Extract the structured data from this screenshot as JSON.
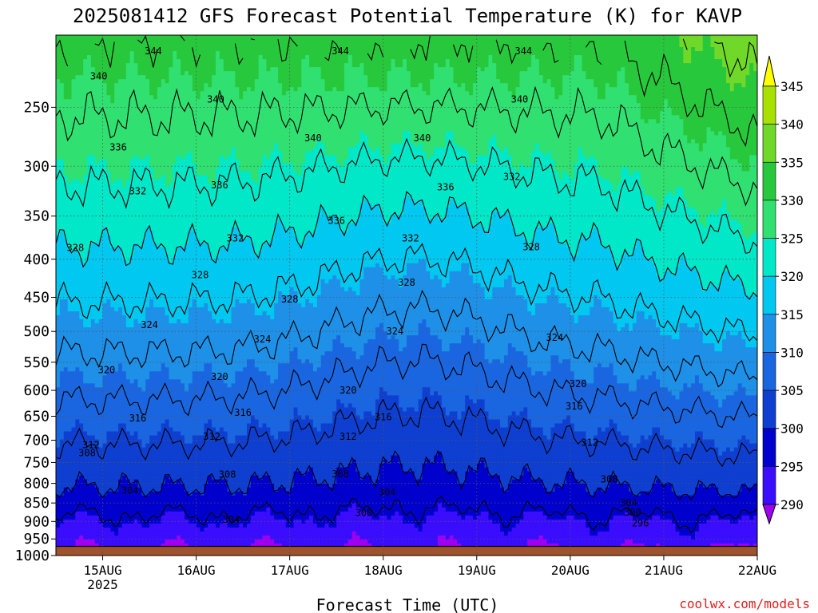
{
  "chart_data": {
    "type": "heatmap",
    "title": "2025081412 GFS Forecast Potential Temperature (K) for KAVP",
    "xlabel": "Forecast Time (UTC)",
    "ylabel": "",
    "watermark": "coolwx.com/models",
    "x_start_label": "2025081412",
    "x_ticks": [
      {
        "label": "15AUG",
        "sub": "2025",
        "hours": 12
      },
      {
        "label": "16AUG",
        "sub": "",
        "hours": 36
      },
      {
        "label": "17AUG",
        "sub": "",
        "hours": 60
      },
      {
        "label": "18AUG",
        "sub": "",
        "hours": 84
      },
      {
        "label": "19AUG",
        "sub": "",
        "hours": 108
      },
      {
        "label": "20AUG",
        "sub": "",
        "hours": 132
      },
      {
        "label": "21AUG",
        "sub": "",
        "hours": 156
      },
      {
        "label": "22AUG",
        "sub": "",
        "hours": 180
      }
    ],
    "xlim_hours": [
      0,
      180
    ],
    "y_ticks": [
      250,
      300,
      350,
      400,
      450,
      500,
      550,
      600,
      650,
      700,
      750,
      800,
      850,
      900,
      950,
      1000
    ],
    "ylim_hpa": [
      200,
      1000
    ],
    "y_scale": "log",
    "ground_level_hpa": 972,
    "colorbar": {
      "levels": [
        290,
        295,
        300,
        305,
        310,
        315,
        320,
        325,
        330,
        335,
        340,
        345
      ],
      "colors": [
        "#a000f0",
        "#3b0dff",
        "#0000cd",
        "#0f3fd0",
        "#1a66e0",
        "#1e90e8",
        "#00c8f0",
        "#00e8c8",
        "#30e070",
        "#28c83c",
        "#70d828",
        "#a8e000",
        "#ffff00"
      ],
      "ground_color": "#a0522d"
    },
    "contour_levels": [
      296,
      300,
      304,
      308,
      312,
      316,
      320,
      324,
      328,
      332,
      336,
      340,
      344
    ],
    "contour_labels": [
      {
        "v": "344",
        "h": 25,
        "p": 210
      },
      {
        "v": "340",
        "h": 11,
        "p": 227
      },
      {
        "v": "336",
        "h": 16,
        "p": 283
      },
      {
        "v": "332",
        "h": 21,
        "p": 324
      },
      {
        "v": "328",
        "h": 5,
        "p": 386
      },
      {
        "v": "324",
        "h": 24,
        "p": 490
      },
      {
        "v": "320",
        "h": 13,
        "p": 563
      },
      {
        "v": "316",
        "h": 21,
        "p": 654
      },
      {
        "v": "312",
        "h": 9,
        "p": 710
      },
      {
        "v": "308",
        "h": 8,
        "p": 728
      },
      {
        "v": "304",
        "h": 19,
        "p": 818
      },
      {
        "v": "340",
        "h": 41,
        "p": 244
      },
      {
        "v": "336",
        "h": 42,
        "p": 318
      },
      {
        "v": "332",
        "h": 46,
        "p": 375
      },
      {
        "v": "328",
        "h": 37,
        "p": 420
      },
      {
        "v": "324",
        "h": 53,
        "p": 512
      },
      {
        "v": "320",
        "h": 42,
        "p": 575
      },
      {
        "v": "316",
        "h": 48,
        "p": 643
      },
      {
        "v": "312",
        "h": 40,
        "p": 692
      },
      {
        "v": "308",
        "h": 44,
        "p": 778
      },
      {
        "v": "304",
        "h": 45,
        "p": 895
      },
      {
        "v": "340",
        "h": 66,
        "p": 275
      },
      {
        "v": "336",
        "h": 72,
        "p": 355
      },
      {
        "v": "328",
        "h": 60,
        "p": 453
      },
      {
        "v": "320",
        "h": 75,
        "p": 600
      },
      {
        "v": "312",
        "h": 75,
        "p": 692
      },
      {
        "v": "308",
        "h": 73,
        "p": 777
      },
      {
        "v": "344",
        "h": 73,
        "p": 210
      },
      {
        "v": "300",
        "h": 79,
        "p": 876
      },
      {
        "v": "316",
        "h": 84,
        "p": 652
      },
      {
        "v": "304",
        "h": 85,
        "p": 822
      },
      {
        "v": "324",
        "h": 87,
        "p": 500
      },
      {
        "v": "332",
        "h": 91,
        "p": 375
      },
      {
        "v": "328",
        "h": 90,
        "p": 430
      },
      {
        "v": "340",
        "h": 94,
        "p": 275
      },
      {
        "v": "336",
        "h": 100,
        "p": 320
      },
      {
        "v": "344",
        "h": 120,
        "p": 210
      },
      {
        "v": "340",
        "h": 119,
        "p": 244
      },
      {
        "v": "332",
        "h": 117,
        "p": 310
      },
      {
        "v": "328",
        "h": 122,
        "p": 385
      },
      {
        "v": "324",
        "h": 128,
        "p": 510
      },
      {
        "v": "320",
        "h": 134,
        "p": 588
      },
      {
        "v": "316",
        "h": 133,
        "p": 630
      },
      {
        "v": "312",
        "h": 137,
        "p": 705
      },
      {
        "v": "308",
        "h": 142,
        "p": 790
      },
      {
        "v": "304",
        "h": 147,
        "p": 850
      },
      {
        "v": "300",
        "h": 148,
        "p": 875
      },
      {
        "v": "296",
        "h": 150,
        "p": 905
      }
    ]
  }
}
